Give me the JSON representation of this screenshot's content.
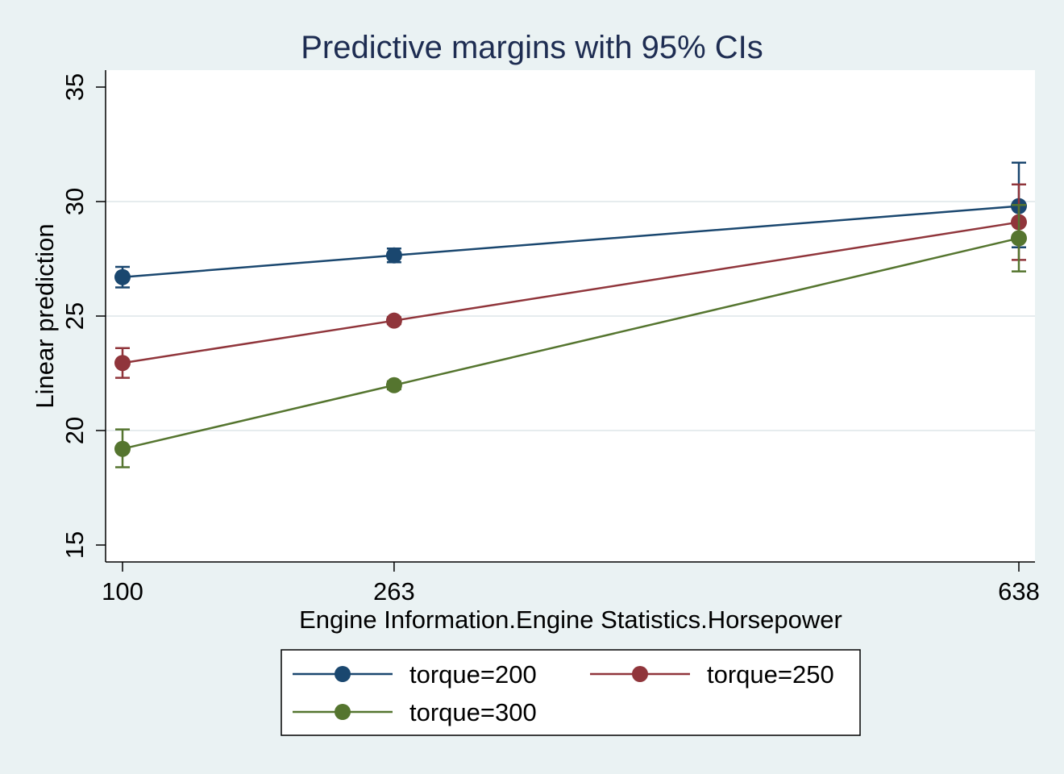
{
  "chart_data": {
    "type": "line",
    "title": "Predictive margins with 95% CIs",
    "xlabel": "Engine Information.Engine Statistics.Horsepower",
    "ylabel": "Linear prediction",
    "x": [
      100,
      263,
      638
    ],
    "x_tick_labels": [
      "100",
      "263",
      "638"
    ],
    "yticks": [
      15,
      20,
      25,
      30,
      35
    ],
    "ylim": [
      15,
      35
    ],
    "grid": true,
    "legend_position": "bottom",
    "series": [
      {
        "name": "torque=200",
        "color": "#1a476f",
        "values": [
          26.7,
          27.65,
          29.8
        ],
        "ci_low": [
          26.25,
          27.35,
          28.0
        ],
        "ci_high": [
          27.15,
          27.95,
          31.7
        ]
      },
      {
        "name": "torque=250",
        "color": "#90353b",
        "values": [
          22.95,
          24.8,
          29.1
        ],
        "ci_low": [
          22.3,
          24.65,
          27.45
        ],
        "ci_high": [
          23.6,
          24.95,
          30.75
        ]
      },
      {
        "name": "torque=300",
        "color": "#55752f",
        "values": [
          19.2,
          21.98,
          28.4
        ],
        "ci_low": [
          18.4,
          21.8,
          26.95
        ],
        "ci_high": [
          20.05,
          22.15,
          29.85
        ]
      }
    ]
  }
}
